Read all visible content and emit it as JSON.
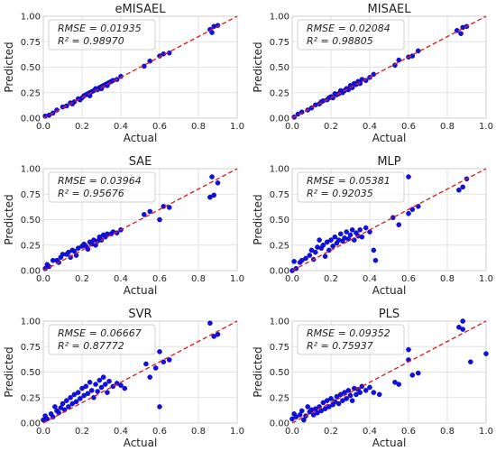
{
  "colors": {
    "points": "#1010e0",
    "points_edge": "#0000aa",
    "diagonal": "#e02020",
    "grid": "#e3e3e3",
    "frame": "#cfcfcf",
    "legend_edge": "#d0d0d0"
  },
  "chart_data": [
    {
      "type": "scatter",
      "title": "eMISAEL",
      "xlabel": "Actual",
      "ylabel": "Predicted",
      "xlim": [
        0,
        1
      ],
      "ylim": [
        0,
        1
      ],
      "xticks": [
        "0.0",
        "0.2",
        "0.4",
        "0.6",
        "0.8",
        "1.0"
      ],
      "yticks": [
        "0.00",
        "0.25",
        "0.50",
        "0.75",
        "1.00"
      ],
      "annotation": {
        "rmse": "RMSE = 0.01935",
        "r2": "R² = 0.98970"
      },
      "reference_line": "y = x",
      "points": [
        [
          0.01,
          0.02
        ],
        [
          0.03,
          0.03
        ],
        [
          0.05,
          0.05
        ],
        [
          0.07,
          0.08
        ],
        [
          0.1,
          0.11
        ],
        [
          0.12,
          0.12
        ],
        [
          0.14,
          0.15
        ],
        [
          0.16,
          0.16
        ],
        [
          0.18,
          0.19
        ],
        [
          0.2,
          0.2
        ],
        [
          0.21,
          0.22
        ],
        [
          0.22,
          0.23
        ],
        [
          0.24,
          0.25
        ],
        [
          0.25,
          0.26
        ],
        [
          0.26,
          0.27
        ],
        [
          0.28,
          0.28
        ],
        [
          0.29,
          0.3
        ],
        [
          0.3,
          0.31
        ],
        [
          0.31,
          0.32
        ],
        [
          0.32,
          0.33
        ],
        [
          0.33,
          0.34
        ],
        [
          0.34,
          0.35
        ],
        [
          0.35,
          0.36
        ],
        [
          0.36,
          0.37
        ],
        [
          0.38,
          0.38
        ],
        [
          0.4,
          0.41
        ],
        [
          0.24,
          0.22
        ],
        [
          0.27,
          0.29
        ],
        [
          0.19,
          0.18
        ],
        [
          0.15,
          0.14
        ],
        [
          0.52,
          0.51
        ],
        [
          0.55,
          0.56
        ],
        [
          0.6,
          0.61
        ],
        [
          0.62,
          0.63
        ],
        [
          0.65,
          0.64
        ],
        [
          0.86,
          0.87
        ],
        [
          0.88,
          0.9
        ],
        [
          0.9,
          0.91
        ],
        [
          0.87,
          0.84
        ],
        [
          0.23,
          0.24
        ],
        [
          0.3,
          0.29
        ],
        [
          0.33,
          0.32
        ]
      ]
    },
    {
      "type": "scatter",
      "title": "MISAEL",
      "xlabel": "Actual",
      "ylabel": "Predicted",
      "xlim": [
        0,
        1
      ],
      "ylim": [
        0,
        1
      ],
      "xticks": [
        "0.0",
        "0.2",
        "0.4",
        "0.6",
        "0.8",
        "1.0"
      ],
      "yticks": [
        "0.00",
        "0.25",
        "0.50",
        "0.75",
        "1.00"
      ],
      "annotation": {
        "rmse": "RMSE = 0.02084",
        "r2": "R² = 0.98805"
      },
      "reference_line": "y = x",
      "points": [
        [
          0.01,
          0.01
        ],
        [
          0.03,
          0.04
        ],
        [
          0.05,
          0.06
        ],
        [
          0.08,
          0.08
        ],
        [
          0.1,
          0.1
        ],
        [
          0.12,
          0.13
        ],
        [
          0.14,
          0.14
        ],
        [
          0.16,
          0.17
        ],
        [
          0.18,
          0.18
        ],
        [
          0.2,
          0.21
        ],
        [
          0.21,
          0.2
        ],
        [
          0.22,
          0.24
        ],
        [
          0.24,
          0.24
        ],
        [
          0.25,
          0.27
        ],
        [
          0.26,
          0.25
        ],
        [
          0.28,
          0.29
        ],
        [
          0.29,
          0.28
        ],
        [
          0.3,
          0.32
        ],
        [
          0.31,
          0.3
        ],
        [
          0.32,
          0.34
        ],
        [
          0.33,
          0.33
        ],
        [
          0.34,
          0.36
        ],
        [
          0.35,
          0.34
        ],
        [
          0.36,
          0.38
        ],
        [
          0.38,
          0.37
        ],
        [
          0.4,
          0.4
        ],
        [
          0.42,
          0.43
        ],
        [
          0.53,
          0.52
        ],
        [
          0.55,
          0.57
        ],
        [
          0.6,
          0.6
        ],
        [
          0.62,
          0.61
        ],
        [
          0.65,
          0.66
        ],
        [
          0.85,
          0.86
        ],
        [
          0.88,
          0.89
        ],
        [
          0.9,
          0.9
        ],
        [
          0.87,
          0.83
        ],
        [
          0.15,
          0.16
        ],
        [
          0.19,
          0.2
        ],
        [
          0.27,
          0.27
        ],
        [
          0.23,
          0.23
        ]
      ]
    },
    {
      "type": "scatter",
      "title": "SAE",
      "xlabel": "Actual",
      "ylabel": "Predicted",
      "xlim": [
        0,
        1
      ],
      "ylim": [
        0,
        1
      ],
      "xticks": [
        "0.0",
        "0.2",
        "0.4",
        "0.6",
        "0.8",
        "1.0"
      ],
      "yticks": [
        "0.00",
        "0.25",
        "0.50",
        "0.75",
        "1.00"
      ],
      "annotation": {
        "rmse": "RMSE = 0.03964",
        "r2": "R² = 0.95676"
      },
      "reference_line": "y = x",
      "points": [
        [
          0.01,
          0.02
        ],
        [
          0.02,
          0.06
        ],
        [
          0.03,
          0.04
        ],
        [
          0.05,
          0.1
        ],
        [
          0.07,
          0.1
        ],
        [
          0.09,
          0.13
        ],
        [
          0.1,
          0.16
        ],
        [
          0.12,
          0.16
        ],
        [
          0.13,
          0.18
        ],
        [
          0.15,
          0.2
        ],
        [
          0.16,
          0.19
        ],
        [
          0.18,
          0.22
        ],
        [
          0.2,
          0.24
        ],
        [
          0.21,
          0.26
        ],
        [
          0.22,
          0.24
        ],
        [
          0.24,
          0.28
        ],
        [
          0.25,
          0.26
        ],
        [
          0.26,
          0.3
        ],
        [
          0.28,
          0.29
        ],
        [
          0.29,
          0.33
        ],
        [
          0.3,
          0.3
        ],
        [
          0.31,
          0.35
        ],
        [
          0.32,
          0.33
        ],
        [
          0.33,
          0.36
        ],
        [
          0.35,
          0.36
        ],
        [
          0.36,
          0.38
        ],
        [
          0.38,
          0.37
        ],
        [
          0.4,
          0.4
        ],
        [
          0.17,
          0.15
        ],
        [
          0.23,
          0.21
        ],
        [
          0.27,
          0.25
        ],
        [
          0.52,
          0.55
        ],
        [
          0.55,
          0.58
        ],
        [
          0.6,
          0.5
        ],
        [
          0.62,
          0.63
        ],
        [
          0.65,
          0.62
        ],
        [
          0.86,
          0.72
        ],
        [
          0.88,
          0.74
        ],
        [
          0.87,
          0.92
        ],
        [
          0.9,
          0.86
        ],
        [
          0.08,
          0.08
        ],
        [
          0.14,
          0.13
        ]
      ]
    },
    {
      "type": "scatter",
      "title": "MLP",
      "xlabel": "Actual",
      "ylabel": "Predicted",
      "xlim": [
        0,
        1
      ],
      "ylim": [
        0,
        1
      ],
      "xticks": [
        "0.0",
        "0.2",
        "0.4",
        "0.6",
        "0.8",
        "1.0"
      ],
      "yticks": [
        "0.00",
        "0.25",
        "0.50",
        "0.75",
        "1.00"
      ],
      "annotation": {
        "rmse": "RMSE = 0.05381",
        "r2": "R² = 0.92035"
      },
      "reference_line": "y = x",
      "points": [
        [
          0.0,
          0.0
        ],
        [
          0.01,
          0.09
        ],
        [
          0.02,
          0.02
        ],
        [
          0.04,
          0.08
        ],
        [
          0.05,
          0.1
        ],
        [
          0.07,
          0.12
        ],
        [
          0.09,
          0.15
        ],
        [
          0.1,
          0.2
        ],
        [
          0.12,
          0.18
        ],
        [
          0.13,
          0.23
        ],
        [
          0.15,
          0.22
        ],
        [
          0.16,
          0.25
        ],
        [
          0.18,
          0.28
        ],
        [
          0.19,
          0.2
        ],
        [
          0.2,
          0.3
        ],
        [
          0.21,
          0.24
        ],
        [
          0.22,
          0.33
        ],
        [
          0.23,
          0.27
        ],
        [
          0.24,
          0.3
        ],
        [
          0.25,
          0.36
        ],
        [
          0.26,
          0.29
        ],
        [
          0.27,
          0.32
        ],
        [
          0.28,
          0.38
        ],
        [
          0.29,
          0.31
        ],
        [
          0.3,
          0.35
        ],
        [
          0.31,
          0.4
        ],
        [
          0.32,
          0.3
        ],
        [
          0.33,
          0.37
        ],
        [
          0.34,
          0.34
        ],
        [
          0.35,
          0.4
        ],
        [
          0.36,
          0.33
        ],
        [
          0.38,
          0.42
        ],
        [
          0.4,
          0.38
        ],
        [
          0.42,
          0.2
        ],
        [
          0.43,
          0.1
        ],
        [
          0.17,
          0.14
        ],
        [
          0.14,
          0.3
        ],
        [
          0.11,
          0.11
        ],
        [
          0.52,
          0.52
        ],
        [
          0.55,
          0.45
        ],
        [
          0.6,
          0.56
        ],
        [
          0.62,
          0.6
        ],
        [
          0.65,
          0.63
        ],
        [
          0.86,
          0.79
        ],
        [
          0.88,
          0.82
        ],
        [
          0.9,
          0.9
        ],
        [
          0.6,
          0.92
        ]
      ]
    },
    {
      "type": "scatter",
      "title": "SVR",
      "xlabel": "Actual",
      "ylabel": "Predicted",
      "xlim": [
        0,
        1
      ],
      "ylim": [
        0,
        1
      ],
      "xticks": [
        "0.0",
        "0.2",
        "0.4",
        "0.6",
        "0.8",
        "1.0"
      ],
      "yticks": [
        "0.00",
        "0.25",
        "0.50",
        "0.75",
        "1.00"
      ],
      "annotation": {
        "rmse": "RMSE = 0.06667",
        "r2": "R² = 0.87772"
      },
      "reference_line": "y = x",
      "points": [
        [
          0.0,
          0.03
        ],
        [
          0.01,
          0.07
        ],
        [
          0.02,
          0.04
        ],
        [
          0.04,
          0.09
        ],
        [
          0.05,
          0.06
        ],
        [
          0.07,
          0.12
        ],
        [
          0.09,
          0.15
        ],
        [
          0.1,
          0.19
        ],
        [
          0.11,
          0.13
        ],
        [
          0.12,
          0.22
        ],
        [
          0.13,
          0.16
        ],
        [
          0.14,
          0.25
        ],
        [
          0.15,
          0.19
        ],
        [
          0.16,
          0.28
        ],
        [
          0.17,
          0.21
        ],
        [
          0.18,
          0.3
        ],
        [
          0.19,
          0.24
        ],
        [
          0.2,
          0.34
        ],
        [
          0.21,
          0.27
        ],
        [
          0.22,
          0.36
        ],
        [
          0.23,
          0.29
        ],
        [
          0.24,
          0.4
        ],
        [
          0.25,
          0.32
        ],
        [
          0.26,
          0.25
        ],
        [
          0.27,
          0.38
        ],
        [
          0.28,
          0.31
        ],
        [
          0.29,
          0.42
        ],
        [
          0.3,
          0.35
        ],
        [
          0.31,
          0.45
        ],
        [
          0.32,
          0.38
        ],
        [
          0.33,
          0.3
        ],
        [
          0.34,
          0.41
        ],
        [
          0.36,
          0.36
        ],
        [
          0.38,
          0.39
        ],
        [
          0.4,
          0.37
        ],
        [
          0.42,
          0.34
        ],
        [
          0.08,
          0.1
        ],
        [
          0.06,
          0.16
        ],
        [
          0.53,
          0.58
        ],
        [
          0.55,
          0.45
        ],
        [
          0.58,
          0.54
        ],
        [
          0.6,
          0.16
        ],
        [
          0.62,
          0.6
        ],
        [
          0.65,
          0.62
        ],
        [
          0.86,
          0.98
        ],
        [
          0.88,
          0.85
        ],
        [
          0.9,
          0.87
        ],
        [
          0.6,
          0.7
        ]
      ]
    },
    {
      "type": "scatter",
      "title": "PLS",
      "xlabel": "Actual",
      "ylabel": "Predicted",
      "xlim": [
        0,
        1
      ],
      "ylim": [
        0,
        1
      ],
      "xticks": [
        "0.0",
        "0.2",
        "0.4",
        "0.6",
        "0.8",
        "1.0"
      ],
      "yticks": [
        "0.00",
        "0.25",
        "0.50",
        "0.75",
        "1.00"
      ],
      "annotation": {
        "rmse": "RMSE = 0.09352",
        "r2": "R² = 0.75937"
      },
      "reference_line": "y = x",
      "points": [
        [
          0.0,
          0.04
        ],
        [
          0.01,
          0.09
        ],
        [
          0.02,
          0.06
        ],
        [
          0.04,
          0.08
        ],
        [
          0.05,
          0.12
        ],
        [
          0.07,
          0.07
        ],
        [
          0.09,
          0.11
        ],
        [
          0.1,
          0.13
        ],
        [
          0.11,
          0.08
        ],
        [
          0.12,
          0.14
        ],
        [
          0.13,
          0.1
        ],
        [
          0.14,
          0.16
        ],
        [
          0.15,
          0.12
        ],
        [
          0.16,
          0.2
        ],
        [
          0.17,
          0.14
        ],
        [
          0.18,
          0.22
        ],
        [
          0.19,
          0.16
        ],
        [
          0.2,
          0.24
        ],
        [
          0.21,
          0.18
        ],
        [
          0.22,
          0.21
        ],
        [
          0.23,
          0.26
        ],
        [
          0.24,
          0.19
        ],
        [
          0.25,
          0.28
        ],
        [
          0.26,
          0.22
        ],
        [
          0.27,
          0.3
        ],
        [
          0.28,
          0.24
        ],
        [
          0.29,
          0.32
        ],
        [
          0.3,
          0.27
        ],
        [
          0.31,
          0.22
        ],
        [
          0.32,
          0.34
        ],
        [
          0.33,
          0.28
        ],
        [
          0.34,
          0.33
        ],
        [
          0.35,
          0.3
        ],
        [
          0.36,
          0.36
        ],
        [
          0.38,
          0.32
        ],
        [
          0.4,
          0.35
        ],
        [
          0.42,
          0.3
        ],
        [
          0.45,
          0.28
        ],
        [
          0.08,
          0.16
        ],
        [
          0.06,
          0.03
        ],
        [
          0.53,
          0.4
        ],
        [
          0.55,
          0.38
        ],
        [
          0.6,
          0.62
        ],
        [
          0.62,
          0.47
        ],
        [
          0.65,
          0.49
        ],
        [
          0.86,
          0.94
        ],
        [
          0.88,
          0.92
        ],
        [
          0.92,
          0.6
        ],
        [
          1.0,
          0.68
        ],
        [
          0.6,
          0.72
        ],
        [
          0.88,
          1.0
        ]
      ]
    }
  ]
}
